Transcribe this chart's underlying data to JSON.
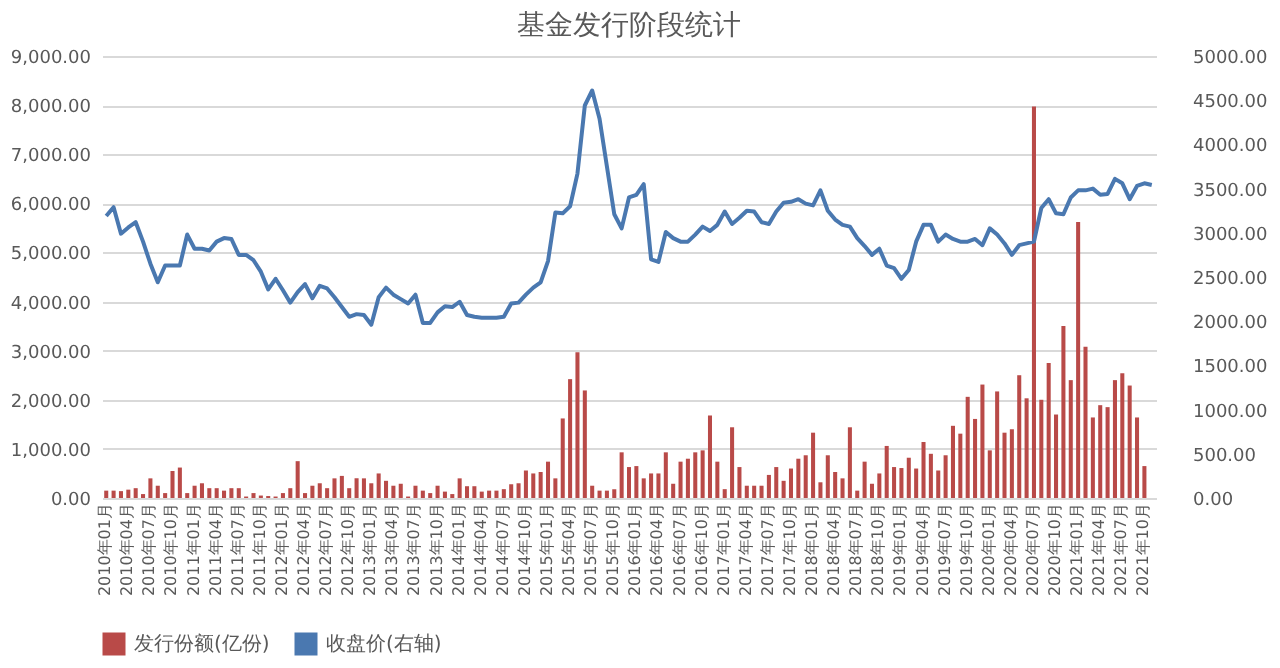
{
  "chart_data": {
    "type": "bar",
    "title": "基金发行阶段统计",
    "categories": [
      "2010年01月",
      null,
      null,
      "2010年04月",
      null,
      null,
      "2010年07月",
      null,
      null,
      "2010年10月",
      null,
      null,
      "2011年01月",
      null,
      null,
      "2011年04月",
      null,
      null,
      "2011年07月",
      null,
      null,
      "2011年10月",
      null,
      null,
      "2012年01月",
      null,
      null,
      "2012年04月",
      null,
      null,
      "2012年07月",
      null,
      null,
      "2012年10月",
      null,
      null,
      "2013年01月",
      null,
      null,
      "2013年04月",
      null,
      null,
      "2013年07月",
      null,
      null,
      "2013年10月",
      null,
      null,
      "2014年01月",
      null,
      null,
      "2014年04月",
      null,
      null,
      "2014年07月",
      null,
      null,
      "2014年10月",
      null,
      null,
      "2015年01月",
      null,
      null,
      "2015年04月",
      null,
      null,
      "2015年07月",
      null,
      null,
      "2015年10月",
      null,
      null,
      "2016年01月",
      null,
      null,
      "2016年04月",
      null,
      null,
      "2016年07月",
      null,
      null,
      "2016年10月",
      null,
      null,
      "2017年01月",
      null,
      null,
      "2017年04月",
      null,
      null,
      "2017年07月",
      null,
      null,
      "2017年10月",
      null,
      null,
      "2018年01月",
      null,
      null,
      "2018年04月",
      null,
      null,
      "2018年07月",
      null,
      null,
      "2018年10月",
      null,
      null,
      "2019年01月",
      null,
      null,
      "2019年04月",
      null,
      null,
      "2019年07月",
      null,
      null,
      "2019年10月",
      null,
      null,
      "2020年01月",
      null,
      null,
      "2020年04月",
      null,
      null,
      "2020年07月",
      null,
      null,
      "2020年10月",
      null,
      null,
      "2021年01月",
      null,
      null,
      "2021年04月",
      null,
      null,
      "2021年07月",
      null,
      null,
      "2021年10月",
      null
    ],
    "series": [
      {
        "name": "发行份额(亿份)",
        "color": "#b94a48",
        "values": [
          150,
          150,
          140,
          170,
          200,
          80,
          400,
          250,
          100,
          550,
          620,
          100,
          250,
          300,
          200,
          200,
          150,
          200,
          200,
          30,
          100,
          50,
          40,
          30,
          100,
          200,
          750,
          100,
          250,
          300,
          200,
          400,
          450,
          200,
          400,
          400,
          300,
          500,
          350,
          250,
          290,
          30,
          250,
          150,
          100,
          250,
          130,
          80,
          400,
          240,
          240,
          130,
          150,
          150,
          180,
          280,
          300,
          560,
          500,
          530,
          740,
          400,
          1620,
          2420,
          2970,
          2190,
          250,
          150,
          150,
          180,
          930,
          630,
          650,
          400,
          500,
          500,
          930,
          290,
          740,
          800,
          930,
          970,
          1680,
          740,
          180,
          1440,
          630,
          250,
          250,
          250,
          470,
          630,
          350,
          600,
          800,
          870,
          1330,
          320,
          870,
          530,
          400,
          1440,
          150,
          740,
          290,
          500,
          1060,
          630,
          610,
          820,
          600,
          1140,
          900,
          560,
          870,
          1470,
          1310,
          2060,
          1610,
          2310,
          970,
          2170,
          1330,
          1400,
          2500,
          2030,
          7970,
          2000,
          2750,
          1700,
          3500,
          2400,
          5620,
          3080,
          1640,
          1890,
          1850,
          2400,
          2540,
          2290,
          1640,
          650,
          null
        ]
      },
      {
        "name": "收盘价(右轴)",
        "type": "line",
        "axis": "y2",
        "color": "#4a78b0",
        "values": [
          3190,
          3290,
          2990,
          3060,
          3120,
          2900,
          2650,
          2440,
          2630,
          2630,
          2630,
          2980,
          2820,
          2820,
          2800,
          2900,
          2940,
          2930,
          2750,
          2750,
          2690,
          2560,
          2360,
          2480,
          2350,
          2210,
          2330,
          2420,
          2260,
          2400,
          2370,
          2270,
          2160,
          2050,
          2080,
          2070,
          1960,
          2270,
          2380,
          2300,
          2250,
          2200,
          2300,
          1980,
          1980,
          2100,
          2170,
          2160,
          2220,
          2070,
          2050,
          2040,
          2040,
          2040,
          2050,
          2200,
          2210,
          2300,
          2380,
          2440,
          2680,
          3230,
          3220,
          3300,
          3670,
          4440,
          4610,
          4290,
          3750,
          3210,
          3050,
          3400,
          3430,
          3550,
          2700,
          2670,
          3010,
          2940,
          2900,
          2900,
          2980,
          3070,
          3020,
          3090,
          3240,
          3100,
          3170,
          3250,
          3240,
          3120,
          3100,
          3240,
          3340,
          3350,
          3380,
          3330,
          3310,
          3480,
          3250,
          3150,
          3090,
          3070,
          2940,
          2850,
          2750,
          2820,
          2630,
          2600,
          2480,
          2580,
          2900,
          3090,
          3090,
          2900,
          2980,
          2930,
          2900,
          2900,
          2930,
          2860,
          3050,
          2980,
          2880,
          2750,
          2860,
          2880,
          2900,
          3280,
          3380,
          3220,
          3210,
          3400,
          3480,
          3480,
          3500,
          3430,
          3440,
          3610,
          3560,
          3380,
          3530,
          3560,
          3540
        ]
      }
    ],
    "ylim": [
      0,
      9000
    ],
    "yticks": [
      {
        "value": 0,
        "label": "0.00"
      },
      {
        "value": 1000,
        "label": "1,000.00"
      },
      {
        "value": 2000,
        "label": "2,000.00"
      },
      {
        "value": 3000,
        "label": "3,000.00"
      },
      {
        "value": 4000,
        "label": "4,000.00"
      },
      {
        "value": 5000,
        "label": "5,000.00"
      },
      {
        "value": 6000,
        "label": "6,000.00"
      },
      {
        "value": 7000,
        "label": "7,000.00"
      },
      {
        "value": 8000,
        "label": "8,000.00"
      },
      {
        "value": 9000,
        "label": "9,000.00"
      }
    ],
    "y2lim": [
      0,
      5000
    ],
    "y2ticks": [
      {
        "value": 0,
        "label": "0.00"
      },
      {
        "value": 500,
        "label": "500.00"
      },
      {
        "value": 1000,
        "label": "1000.00"
      },
      {
        "value": 1500,
        "label": "1500.00"
      },
      {
        "value": 2000,
        "label": "2000.00"
      },
      {
        "value": 2500,
        "label": "2500.00"
      },
      {
        "value": 3000,
        "label": "3000.00"
      },
      {
        "value": 3500,
        "label": "3500.00"
      },
      {
        "value": 4000,
        "label": "4000.00"
      },
      {
        "value": 4500,
        "label": "4500.00"
      },
      {
        "value": 5000,
        "label": "5000.00"
      }
    ],
    "grid": "y",
    "legend": "bottom"
  }
}
